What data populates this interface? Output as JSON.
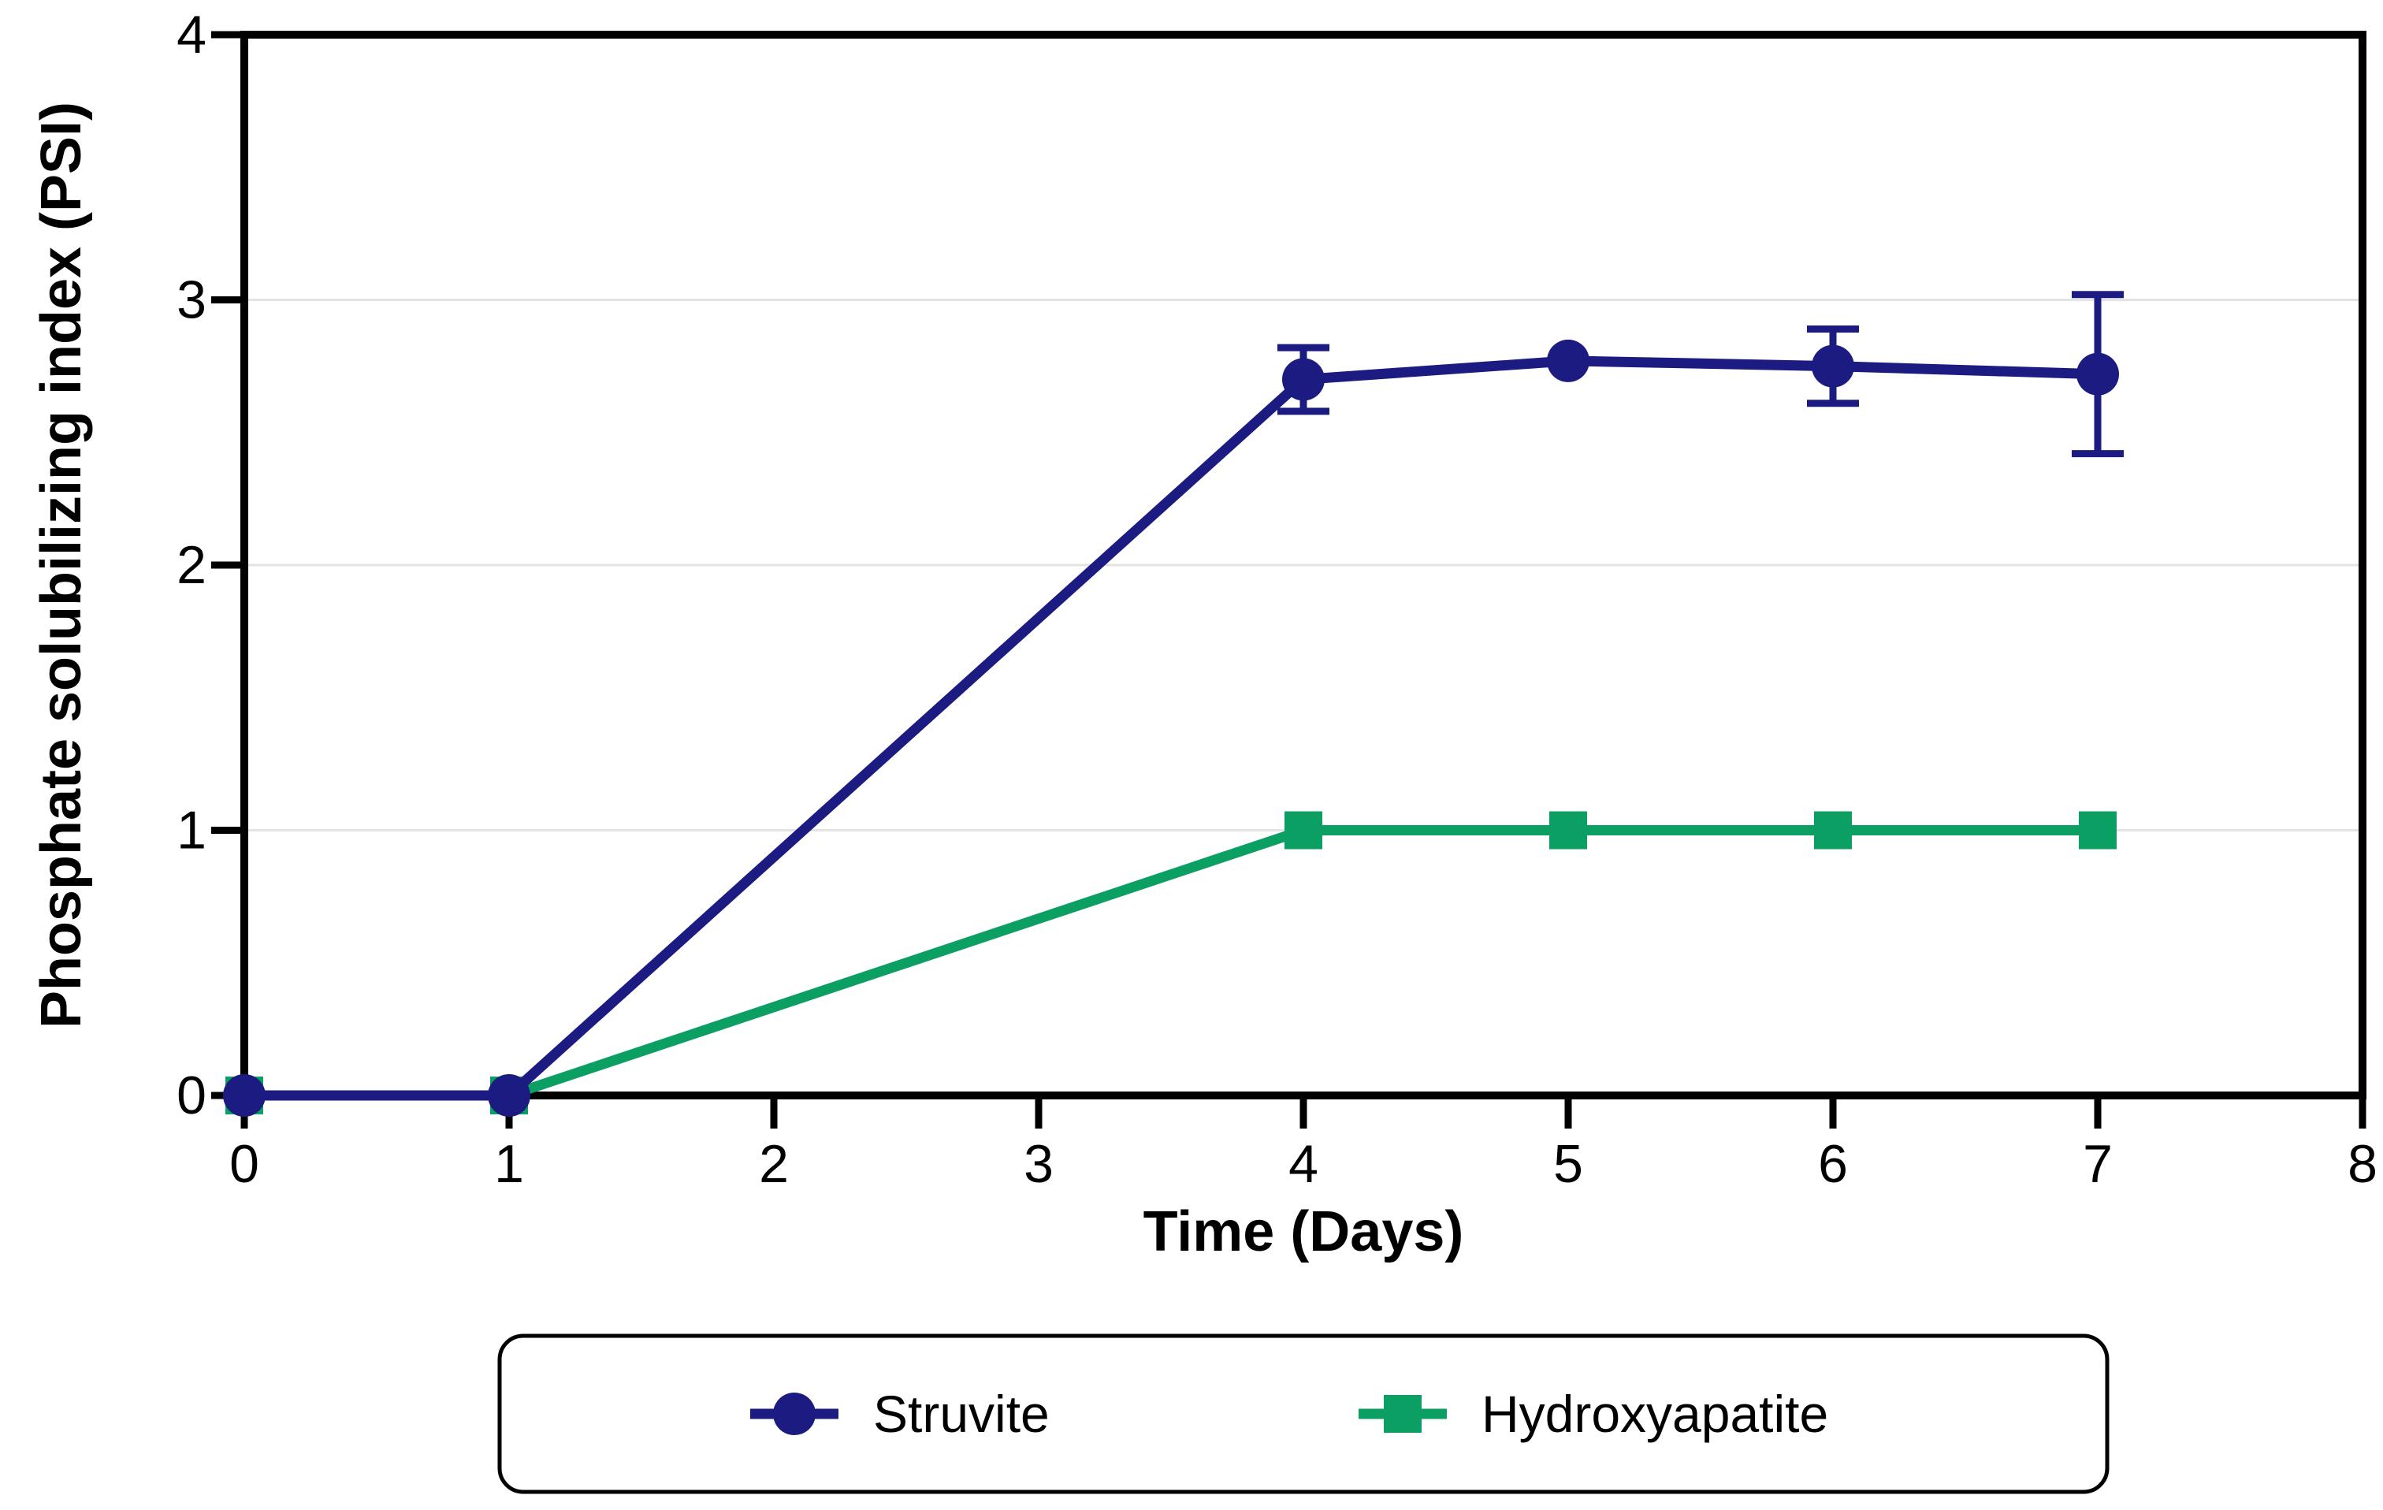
{
  "chart_data": {
    "type": "line",
    "title": "",
    "xlabel": "Time (Days)",
    "ylabel": "Phosphate solubilizing index (PSI)",
    "xlim": [
      0,
      8
    ],
    "ylim": [
      0,
      4
    ],
    "xticks": [
      0,
      1,
      2,
      3,
      4,
      5,
      6,
      7,
      8
    ],
    "yticks": [
      0,
      1,
      2,
      3,
      4
    ],
    "gridlines_y": [
      1,
      2,
      3
    ],
    "grid_on": true,
    "grid_color": "#e3e3e3",
    "axis_color": "#000000",
    "background_color": "#ffffff",
    "x": [
      0,
      1,
      4,
      5,
      6,
      7
    ],
    "series": [
      {
        "name": "Struvite",
        "color": "#1b1b82",
        "marker": "circle",
        "values": [
          0,
          0,
          2.7,
          2.77,
          2.75,
          2.72
        ],
        "errors": [
          0,
          0,
          0.12,
          0,
          0.14,
          0.3
        ]
      },
      {
        "name": "Hydroxyapatite",
        "color": "#0c9f64",
        "marker": "square",
        "values": [
          0,
          0,
          1,
          1,
          1,
          1
        ],
        "errors": [
          0,
          0,
          0,
          0,
          0,
          0
        ]
      }
    ],
    "legend": {
      "position": "bottom",
      "border": true,
      "entries": [
        "Struvite",
        "Hydroxyapatite"
      ]
    }
  }
}
